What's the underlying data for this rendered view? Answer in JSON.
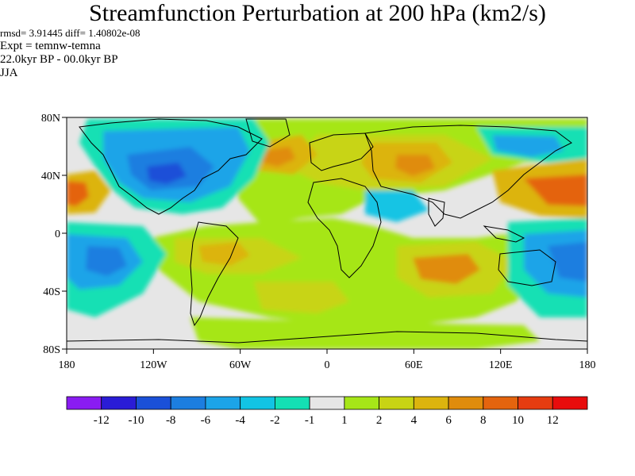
{
  "title": "Streamfunction Perturbation at 200 hPa (km2/s)",
  "stats": "rmsd= 3.91445 diff= 1.40802e-08",
  "experiment": "Expt = temnw-temna",
  "period": "22.0kyr BP - 00.0kyr BP",
  "season": "JJA",
  "lat_ticks": [
    "80N",
    "40N",
    "0",
    "40S",
    "80S"
  ],
  "lon_ticks": [
    "180",
    "120W",
    "60W",
    "0",
    "60E",
    "120E",
    "180"
  ],
  "colorbar": {
    "labels": [
      "-12",
      "-10",
      "-8",
      "-6",
      "-4",
      "-2",
      "-1",
      "1",
      "2",
      "4",
      "6",
      "8",
      "10",
      "12"
    ],
    "colors": [
      "#8a1cf2",
      "#2a1cd6",
      "#1a50d8",
      "#1c7ee0",
      "#1ca4e8",
      "#12c4e4",
      "#14e0b4",
      "#e6e6e6",
      "#a6e618",
      "#c8d414",
      "#dcb40e",
      "#e08c0c",
      "#e4640e",
      "#e63c10",
      "#e80c0c"
    ]
  },
  "colors": {
    "land_outline": "#000000",
    "neutral": "#e6e6e6"
  }
}
